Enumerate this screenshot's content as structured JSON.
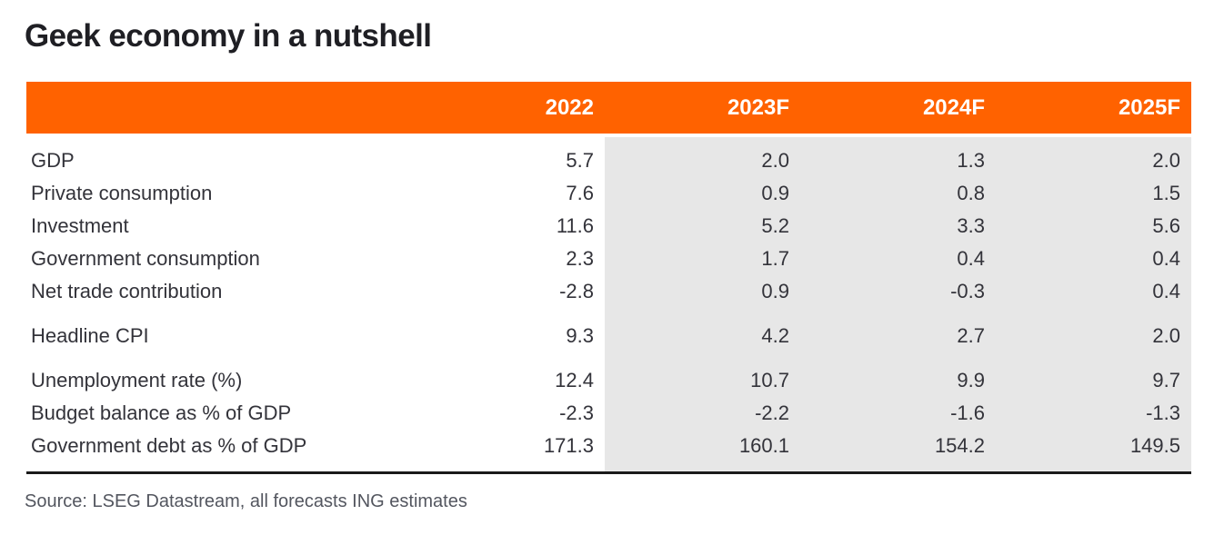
{
  "title": "Geek economy in a nutshell",
  "source_note": "Source: LSEG Datastream, all forecasts ING estimates",
  "colors": {
    "header_orange": "#FF6200",
    "header_text": "#FFFFFF",
    "forecast_shade": "#E7E7E7",
    "body_text": "#33333A",
    "title_text": "#1F1F24",
    "bottom_border": "#1A1A1A",
    "source_text": "#53565F"
  },
  "chart_data": {
    "type": "table",
    "title": "Geek economy in a nutshell",
    "columns": [
      "2022",
      "2023F",
      "2024F",
      "2025F"
    ],
    "forecast_columns": [
      "2023F",
      "2024F",
      "2025F"
    ],
    "layout_hint": "forecast columns shaded grey; header row orange; values right-aligned",
    "groups": [
      {
        "name": "growth-components",
        "rows": [
          {
            "label": "GDP",
            "values": [
              "5.7",
              "2.0",
              "1.3",
              "2.0"
            ]
          },
          {
            "label": "Private consumption",
            "values": [
              "7.6",
              "0.9",
              "0.8",
              "1.5"
            ]
          },
          {
            "label": "Investment",
            "values": [
              "11.6",
              "5.2",
              "3.3",
              "5.6"
            ]
          },
          {
            "label": "Government consumption",
            "values": [
              "2.3",
              "1.7",
              "0.4",
              "0.4"
            ]
          },
          {
            "label": "Net trade contribution",
            "values": [
              "-2.8",
              "0.9",
              "-0.3",
              "0.4"
            ]
          }
        ]
      },
      {
        "name": "inflation",
        "rows": [
          {
            "label": "Headline CPI",
            "values": [
              "9.3",
              "4.2",
              "2.7",
              "2.0"
            ]
          }
        ]
      },
      {
        "name": "labour-and-fiscal",
        "rows": [
          {
            "label": "Unemployment rate (%)",
            "values": [
              "12.4",
              "10.7",
              "9.9",
              "9.7"
            ]
          },
          {
            "label": "Budget balance as % of GDP",
            "values": [
              "-2.3",
              "-2.2",
              "-1.6",
              "-1.3"
            ]
          },
          {
            "label": "Government debt as % of GDP",
            "values": [
              "171.3",
              "160.1",
              "154.2",
              "149.5"
            ]
          }
        ]
      }
    ],
    "source": "Source: LSEG Datastream, all forecasts ING estimates"
  }
}
